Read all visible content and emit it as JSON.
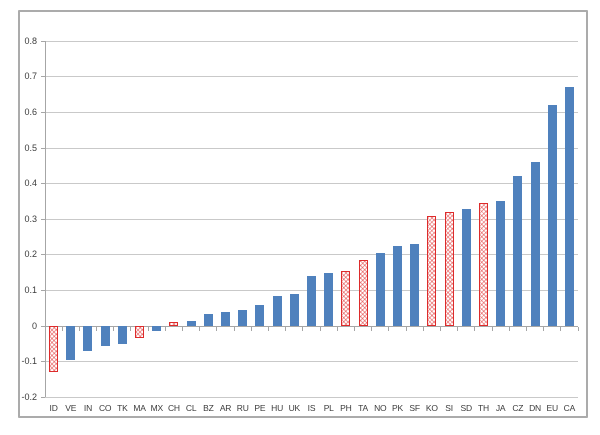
{
  "chart_data": {
    "type": "bar",
    "title": "",
    "categories": [
      "ID",
      "VE",
      "IN",
      "CO",
      "TK",
      "MA",
      "MX",
      "CH",
      "CL",
      "BZ",
      "AR",
      "RU",
      "PE",
      "HU",
      "UK",
      "IS",
      "PL",
      "PH",
      "TA",
      "NO",
      "PK",
      "SF",
      "KO",
      "SI",
      "SD",
      "TH",
      "JA",
      "CZ",
      "DN",
      "EU",
      "CA"
    ],
    "values": [
      -0.13,
      -0.095,
      -0.07,
      -0.055,
      -0.05,
      -0.035,
      -0.015,
      0.01,
      0.015,
      0.035,
      0.04,
      0.045,
      0.06,
      0.085,
      0.09,
      0.14,
      0.15,
      0.155,
      0.185,
      0.205,
      0.225,
      0.23,
      0.31,
      0.32,
      0.33,
      0.345,
      0.35,
      0.42,
      0.46,
      0.62,
      0.67
    ],
    "highlighted_categories": [
      "ID",
      "MA",
      "CH",
      "PH",
      "TA",
      "KO",
      "SI",
      "TH"
    ],
    "highlight_style": "white fill with red diagonal crosshatch and red outline",
    "xlabel": "",
    "ylabel": "",
    "ylim": [
      -0.2,
      0.8
    ],
    "ytick_step": 0.1,
    "ytick_labels": [
      "0.8",
      "0.7",
      "0.6",
      "0.5",
      "0.4",
      "0.3",
      "0.2",
      "0.1",
      "0",
      "-0.1",
      "-0.2"
    ],
    "grid": true,
    "legend": "none",
    "colors": {
      "bar_color": "#4f81bd",
      "highlight_color": "#dd2b2b",
      "gridline_color": "#c9c9c9",
      "axis_color": "#a6a6a6",
      "frame_border_color": "#ababab",
      "label_color": "#3b3b3b"
    }
  }
}
